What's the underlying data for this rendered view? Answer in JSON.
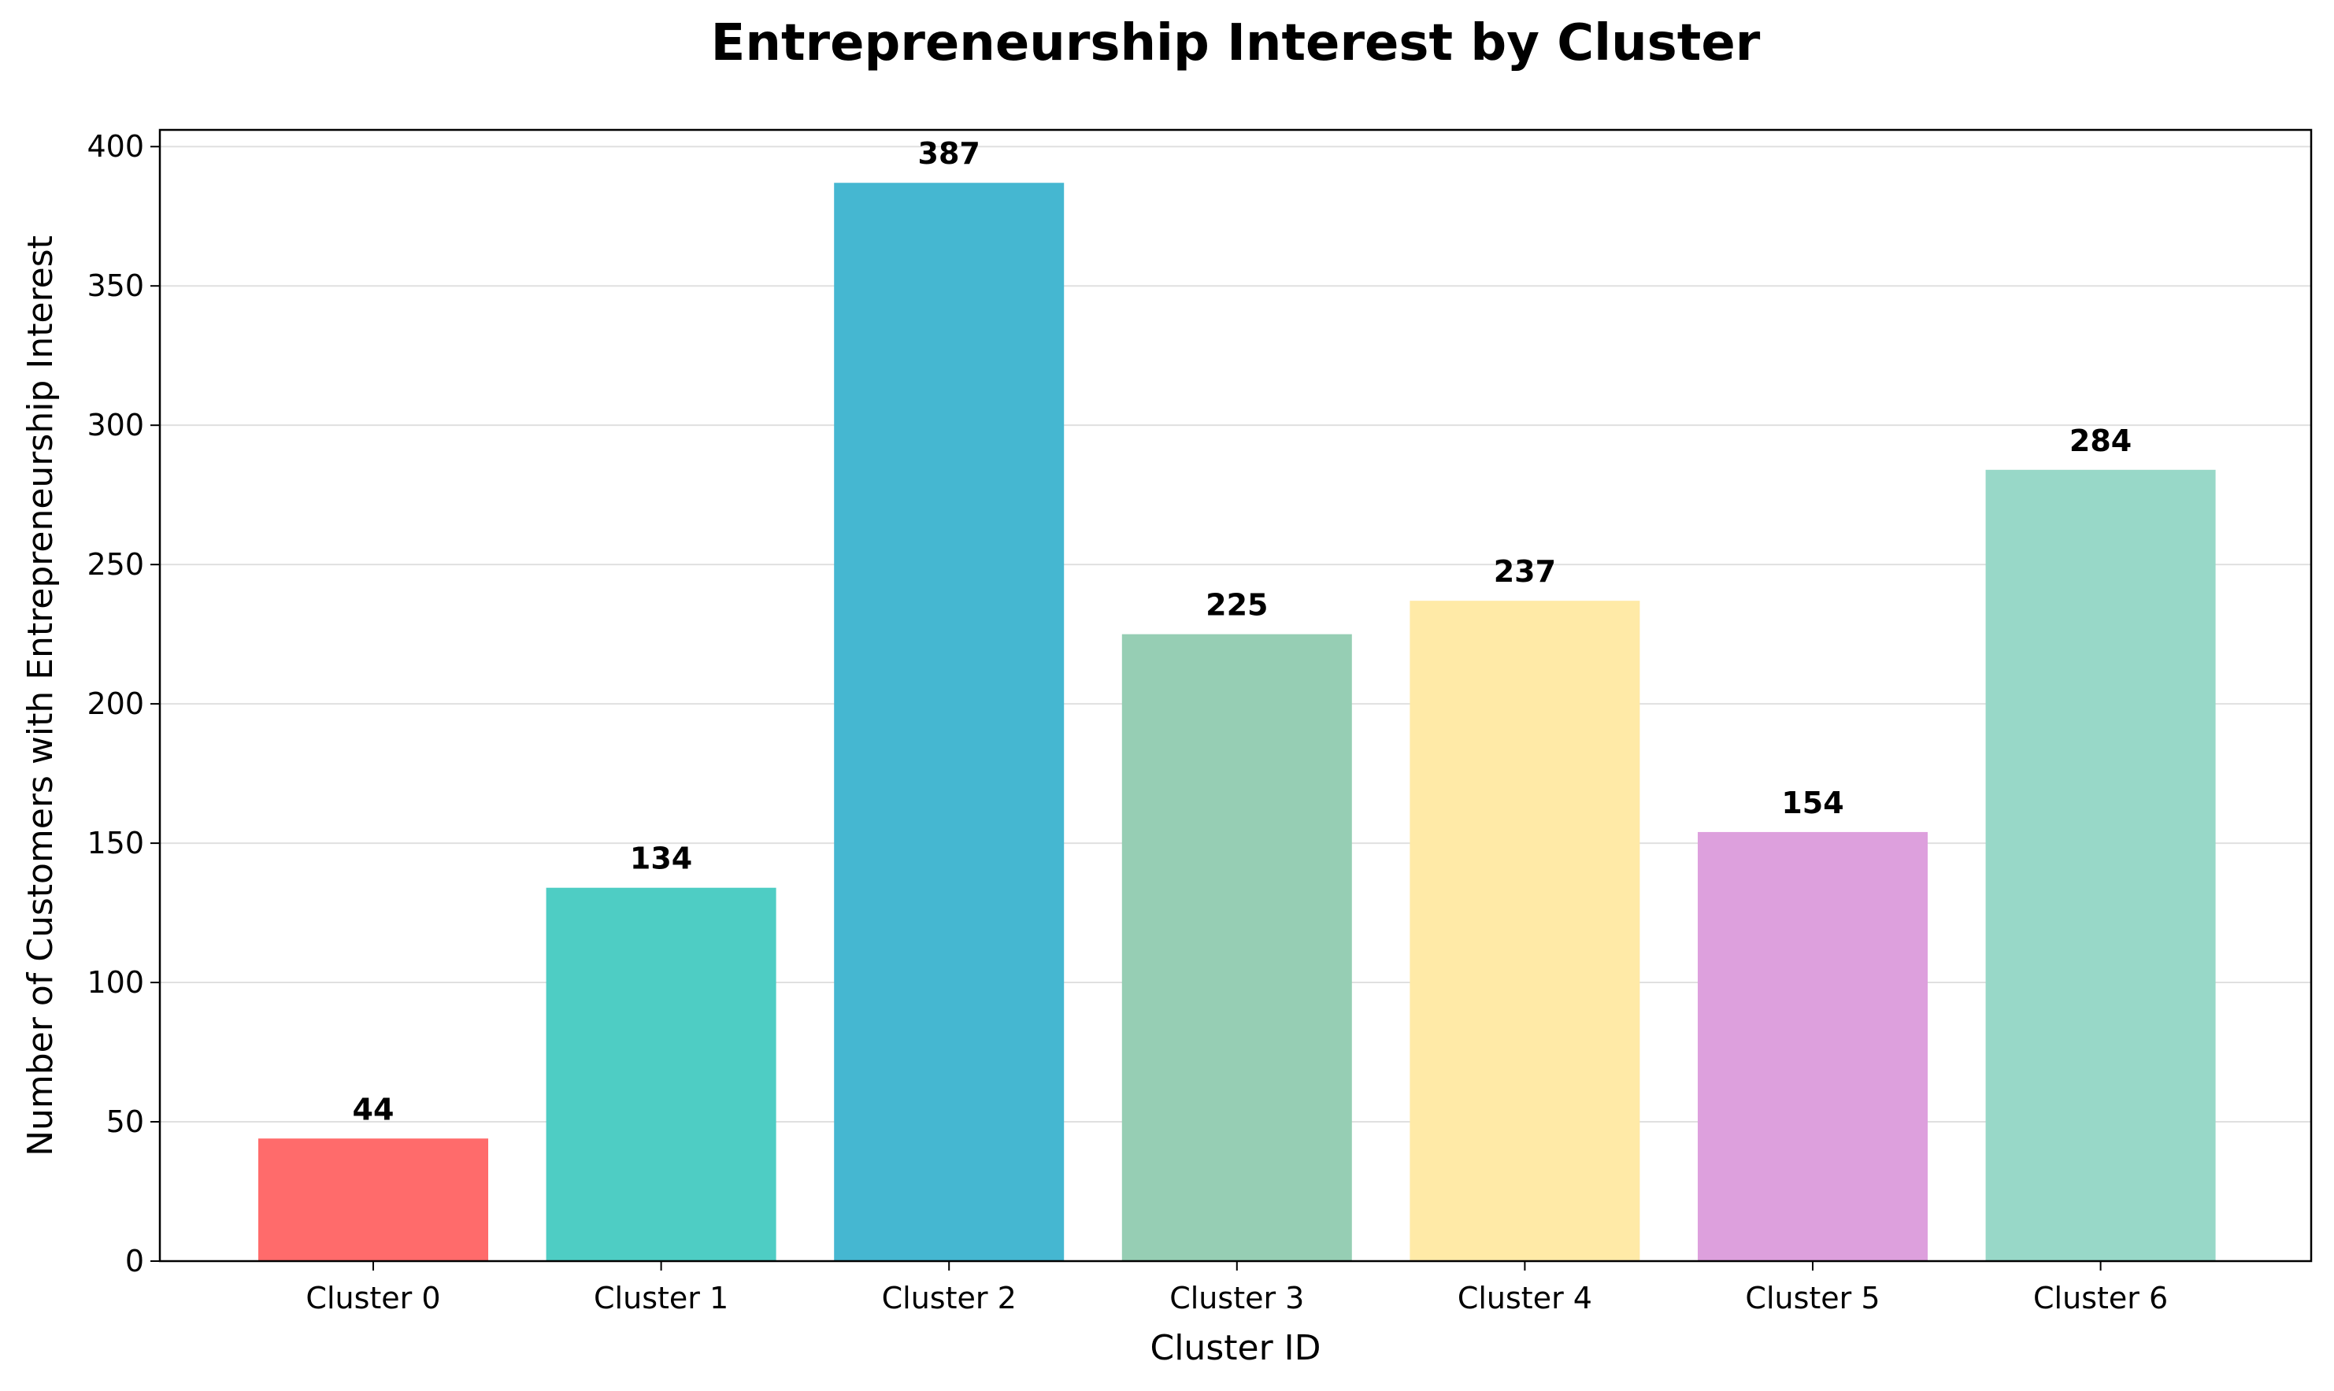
{
  "chart_data": {
    "type": "bar",
    "title": "Entrepreneurship Interest by Cluster",
    "xlabel": "Cluster ID",
    "ylabel": "Number of Customers with Entrepreneurship Interest",
    "categories": [
      "Cluster 0",
      "Cluster 1",
      "Cluster 2",
      "Cluster 3",
      "Cluster 4",
      "Cluster 5",
      "Cluster 6"
    ],
    "values": [
      44,
      134,
      387,
      225,
      237,
      154,
      284
    ],
    "data_labels": [
      "44",
      "134",
      "387",
      "225",
      "237",
      "154",
      "284"
    ],
    "colors": [
      "#FF6B6B",
      "#4ECDC4",
      "#45B7D1",
      "#96CEB4",
      "#FFEAA7",
      "#DDA0DD",
      "#98D8C8"
    ],
    "ylim": [
      0,
      406
    ],
    "yticks": [
      0,
      50,
      100,
      150,
      200,
      250,
      300,
      350,
      400
    ],
    "ytick_labels": [
      "0",
      "50",
      "100",
      "150",
      "200",
      "250",
      "300",
      "350",
      "400"
    ],
    "grid": "horizontal",
    "legend": "none"
  }
}
